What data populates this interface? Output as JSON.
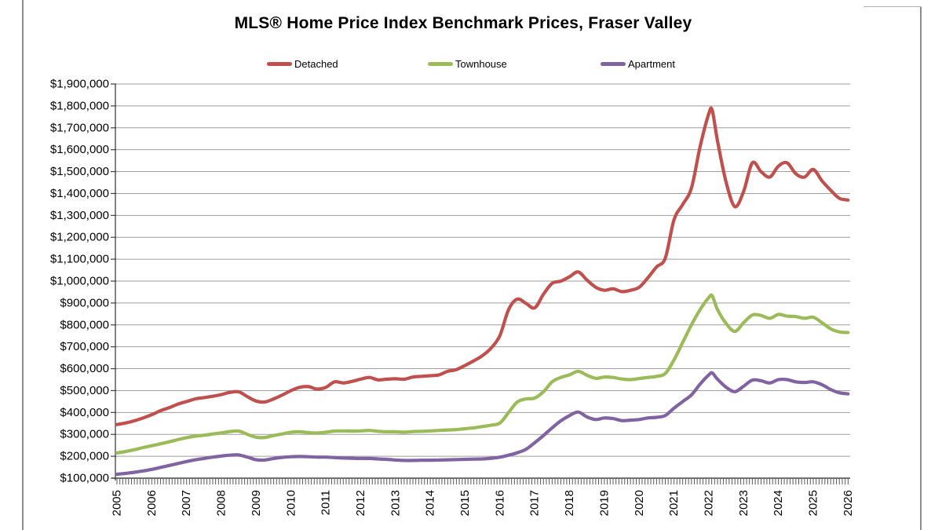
{
  "page": {
    "title": "MLS® Home Price Index Benchmark Prices, Fraser Valley"
  },
  "legend": {
    "items": [
      {
        "label": "Detached",
        "color": "#C0504D"
      },
      {
        "label": "Townhouse",
        "color": "#9BBB59"
      },
      {
        "label": "Apartment",
        "color": "#8064A2"
      }
    ]
  },
  "chart_data": {
    "type": "line",
    "title": "MLS® Home Price Index Benchmark Prices, Fraser Valley",
    "xlabel": "",
    "ylabel": "",
    "grid": true,
    "legend_position": "top",
    "x_min": 2005,
    "x_axis_end": 2026.08,
    "y_min": 100000,
    "y_max": 1900000,
    "y_step": 100000,
    "y_tick_labels": [
      "$100,000",
      "$200,000",
      "$300,000",
      "$400,000",
      "$500,000",
      "$600,000",
      "$700,000",
      "$800,000",
      "$900,000",
      "$1,000,000",
      "$1,100,000",
      "$1,200,000",
      "$1,300,000",
      "$1,400,000",
      "$1,500,000",
      "$1,600,000",
      "$1,700,000",
      "$1,800,000",
      "$1,900,000"
    ],
    "x_ticks": [
      2005,
      2006,
      2007,
      2008,
      2009,
      2010,
      2011,
      2012,
      2013,
      2014,
      2015,
      2016,
      2017,
      2018,
      2019,
      2020,
      2021,
      2022,
      2023,
      2024,
      2025,
      2026
    ],
    "x_minor_tick_interval_years": 0.0833,
    "x": [
      2005,
      2005.25,
      2005.5,
      2005.75,
      2006,
      2006.25,
      2006.5,
      2006.75,
      2007,
      2007.25,
      2007.5,
      2007.75,
      2008,
      2008.25,
      2008.5,
      2008.75,
      2009,
      2009.25,
      2009.5,
      2009.75,
      2010,
      2010.25,
      2010.5,
      2010.75,
      2011,
      2011.25,
      2011.5,
      2011.75,
      2012,
      2012.25,
      2012.5,
      2012.75,
      2013,
      2013.25,
      2013.5,
      2013.75,
      2014,
      2014.25,
      2014.5,
      2014.75,
      2015,
      2015.25,
      2015.5,
      2015.75,
      2016,
      2016.25,
      2016.5,
      2016.75,
      2017,
      2017.25,
      2017.5,
      2017.75,
      2018,
      2018.25,
      2018.5,
      2018.75,
      2019,
      2019.25,
      2019.5,
      2019.75,
      2020,
      2020.25,
      2020.5,
      2020.75,
      2021,
      2021.25,
      2021.5,
      2021.75,
      2022,
      2022.1,
      2022.25,
      2022.5,
      2022.75,
      2023,
      2023.25,
      2023.5,
      2023.75,
      2024,
      2024.25,
      2024.5,
      2024.75,
      2025,
      2025.25,
      2025.5,
      2025.75,
      2026
    ],
    "series": [
      {
        "name": "Detached",
        "color": "#C0504D",
        "values": [
          345000,
          352000,
          362000,
          375000,
          390000,
          408000,
          422000,
          438000,
          450000,
          462000,
          468000,
          474000,
          482000,
          492000,
          494000,
          472000,
          452000,
          448000,
          462000,
          480000,
          500000,
          515000,
          518000,
          507000,
          515000,
          540000,
          535000,
          542000,
          552000,
          560000,
          549000,
          552000,
          554000,
          552000,
          562000,
          565000,
          568000,
          572000,
          588000,
          596000,
          615000,
          636000,
          660000,
          695000,
          752000,
          870000,
          918000,
          898000,
          878000,
          940000,
          990000,
          1000000,
          1020000,
          1042000,
          1005000,
          972000,
          958000,
          965000,
          952000,
          958000,
          972000,
          1015000,
          1065000,
          1105000,
          1280000,
          1350000,
          1425000,
          1615000,
          1765000,
          1778000,
          1640000,
          1450000,
          1340000,
          1410000,
          1540000,
          1500000,
          1475000,
          1525000,
          1540000,
          1490000,
          1475000,
          1510000,
          1458000,
          1415000,
          1378000,
          1370000
        ]
      },
      {
        "name": "Townhouse",
        "color": "#9BBB59",
        "values": [
          215000,
          222000,
          230000,
          240000,
          248000,
          257000,
          266000,
          276000,
          285000,
          292000,
          296000,
          302000,
          307000,
          313000,
          315000,
          300000,
          287000,
          286000,
          295000,
          302000,
          310000,
          312000,
          308000,
          306000,
          310000,
          315000,
          316000,
          315000,
          316000,
          318000,
          314000,
          312000,
          312000,
          310000,
          313000,
          314000,
          316000,
          318000,
          320000,
          322000,
          326000,
          330000,
          336000,
          342000,
          352000,
          400000,
          448000,
          462000,
          466000,
          495000,
          540000,
          560000,
          572000,
          588000,
          570000,
          556000,
          562000,
          560000,
          553000,
          550000,
          555000,
          560000,
          565000,
          578000,
          640000,
          720000,
          800000,
          870000,
          925000,
          932000,
          870000,
          806000,
          770000,
          810000,
          845000,
          843000,
          830000,
          848000,
          840000,
          838000,
          830000,
          835000,
          810000,
          782000,
          768000,
          765000
        ]
      },
      {
        "name": "Apartment",
        "color": "#8064A2",
        "values": [
          118000,
          122000,
          127000,
          133000,
          140000,
          149000,
          158000,
          167000,
          176000,
          184000,
          190000,
          196000,
          201000,
          205000,
          206000,
          196000,
          184000,
          183000,
          190000,
          195000,
          198000,
          199000,
          198000,
          196000,
          196000,
          194000,
          192000,
          191000,
          190000,
          190000,
          188000,
          186000,
          183000,
          181000,
          181000,
          182000,
          182000,
          183000,
          184000,
          185000,
          186000,
          187000,
          188000,
          191000,
          196000,
          205000,
          216000,
          232000,
          262000,
          295000,
          330000,
          362000,
          386000,
          402000,
          380000,
          368000,
          375000,
          372000,
          363000,
          365000,
          368000,
          375000,
          378000,
          386000,
          420000,
          450000,
          480000,
          530000,
          572000,
          580000,
          552000,
          515000,
          495000,
          520000,
          548000,
          545000,
          535000,
          550000,
          550000,
          540000,
          537000,
          540000,
          527000,
          505000,
          490000,
          485000
        ]
      }
    ],
    "colors": {
      "gridline": "#9e9e9e",
      "axis": "#404040",
      "tick": "#595959"
    }
  }
}
